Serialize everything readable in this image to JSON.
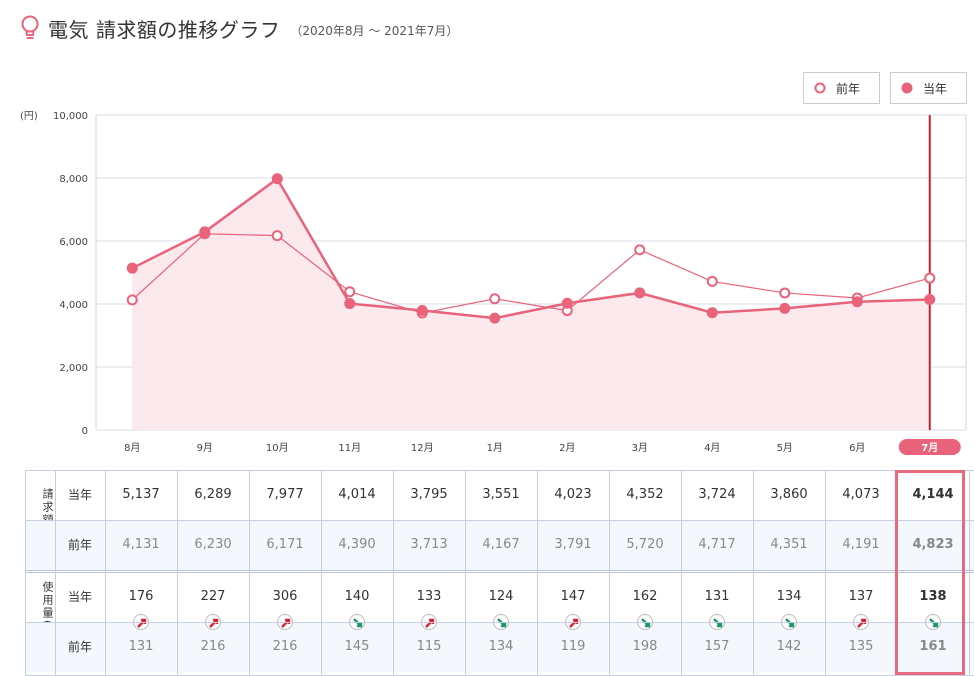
{
  "header": {
    "title": "電気 請求額の推移グラフ",
    "period": "（2020年8月 ～ 2021年7月）",
    "icon": "lightbulb-icon",
    "accent": "#e9637a"
  },
  "legend": {
    "prev_label": "前年",
    "cur_label": "当年"
  },
  "chart_data": {
    "type": "line",
    "unit_label": "(円)",
    "categories": [
      "8月",
      "9月",
      "10月",
      "11月",
      "12月",
      "1月",
      "2月",
      "3月",
      "4月",
      "5月",
      "6月",
      "7月"
    ],
    "selected_index": 11,
    "ylim": [
      0,
      10000
    ],
    "yticks": [
      "0",
      "2,000",
      "4,000",
      "6,000",
      "8,000",
      "10,000"
    ],
    "ytick_values": [
      0,
      2000,
      4000,
      6000,
      8000,
      10000
    ],
    "grid": true,
    "series": [
      {
        "name": "当年",
        "values": [
          5137,
          6289,
          7977,
          4014,
          3795,
          3551,
          4023,
          4352,
          3724,
          3860,
          4073,
          4144
        ],
        "color": "#e9637a",
        "marker": "filled",
        "area": true
      },
      {
        "name": "前年",
        "values": [
          4131,
          6230,
          6171,
          4390,
          3713,
          4167,
          3791,
          5720,
          4717,
          4351,
          4191,
          4823
        ],
        "color": "#e9637a",
        "marker": "hollow"
      }
    ]
  },
  "table": {
    "groups": [
      {
        "title": "請求額(円)",
        "rows": [
          {
            "label": "当年",
            "values": [
              "5,137",
              "6,289",
              "7,977",
              "4,014",
              "3,795",
              "3,551",
              "4,023",
              "4,352",
              "3,724",
              "3,860",
              "4,073",
              "4,144"
            ]
          },
          {
            "label": "前年",
            "values": [
              "4,131",
              "6,230",
              "6,171",
              "4,390",
              "3,713",
              "4,167",
              "3,791",
              "5,720",
              "4,717",
              "4,351",
              "4,191",
              "4,823"
            ]
          }
        ]
      },
      {
        "title": "使用量(kWh)",
        "rows": [
          {
            "label": "当年",
            "values": [
              "176",
              "227",
              "306",
              "140",
              "133",
              "124",
              "147",
              "162",
              "131",
              "134",
              "137",
              "138"
            ]
          },
          {
            "label": "前年",
            "values": [
              "131",
              "216",
              "216",
              "145",
              "115",
              "134",
              "119",
              "198",
              "157",
              "142",
              "135",
              "161"
            ]
          }
        ],
        "trend": [
          "up",
          "up",
          "up",
          "down",
          "up",
          "down",
          "up",
          "down",
          "down",
          "down",
          "up",
          "down"
        ]
      }
    ],
    "up_color": "#e0202e",
    "down_color": "#1a9a62"
  }
}
